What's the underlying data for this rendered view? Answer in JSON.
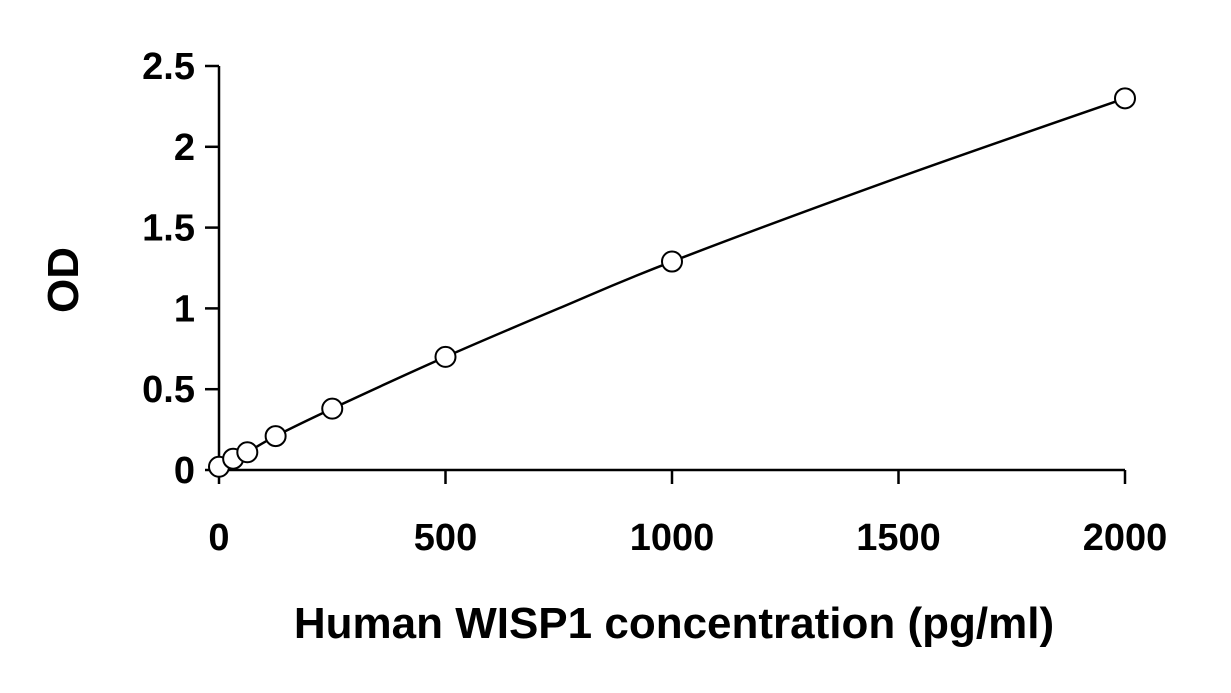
{
  "chart_data": {
    "type": "scatter",
    "title": "",
    "xlabel": "Human WISP1 concentration (pg/ml)",
    "ylabel": "OD",
    "xlim": [
      0,
      2000
    ],
    "ylim": [
      0,
      2.5
    ],
    "x_ticks": [
      0,
      500,
      1000,
      1500,
      2000
    ],
    "x_tick_labels": [
      "0",
      "500",
      "1000",
      "1500",
      "2000"
    ],
    "y_ticks": [
      0,
      0.5,
      1,
      1.5,
      2,
      2.5
    ],
    "y_tick_labels": [
      "0",
      "0.5",
      "1",
      "1.5",
      "2",
      "2.5"
    ],
    "grid": false,
    "legend": "none",
    "series": [
      {
        "marker": "open-circle",
        "x": [
          0,
          31.25,
          62.5,
          125,
          250,
          500,
          1000,
          2000
        ],
        "y": [
          0.02,
          0.07,
          0.11,
          0.21,
          0.38,
          0.7,
          1.29,
          2.3
        ]
      }
    ],
    "fit_curve": {
      "type": "smooth-line",
      "x": [
        0,
        31.25,
        62.5,
        125,
        250,
        500,
        750,
        1000,
        1500,
        2000
      ],
      "y": [
        0.02,
        0.07,
        0.11,
        0.21,
        0.38,
        0.7,
        1.0,
        1.29,
        1.81,
        2.3
      ]
    },
    "colors": {
      "line": "#000000",
      "marker_stroke": "#000000",
      "marker_fill": "#ffffff",
      "axis": "#000000"
    }
  }
}
